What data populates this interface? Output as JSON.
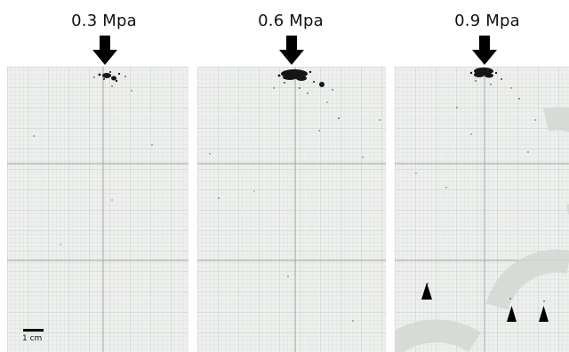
{
  "panels": [
    {
      "label": "0.3 Mpa"
    },
    {
      "label": "0.6 Mpa"
    },
    {
      "label": "0.9 Mpa"
    }
  ],
  "scale_bar": {
    "label": "1 cm"
  },
  "colors": {
    "paper": "#eef0ee",
    "grid_minor": "#d5d9d6",
    "grid_major": "#b8bcb9",
    "ink": "#111111",
    "watermark": "#d8dad8"
  },
  "icons": {
    "pressure_arrow": "down-arrow-icon",
    "marker": "triangle-marker-icon"
  }
}
